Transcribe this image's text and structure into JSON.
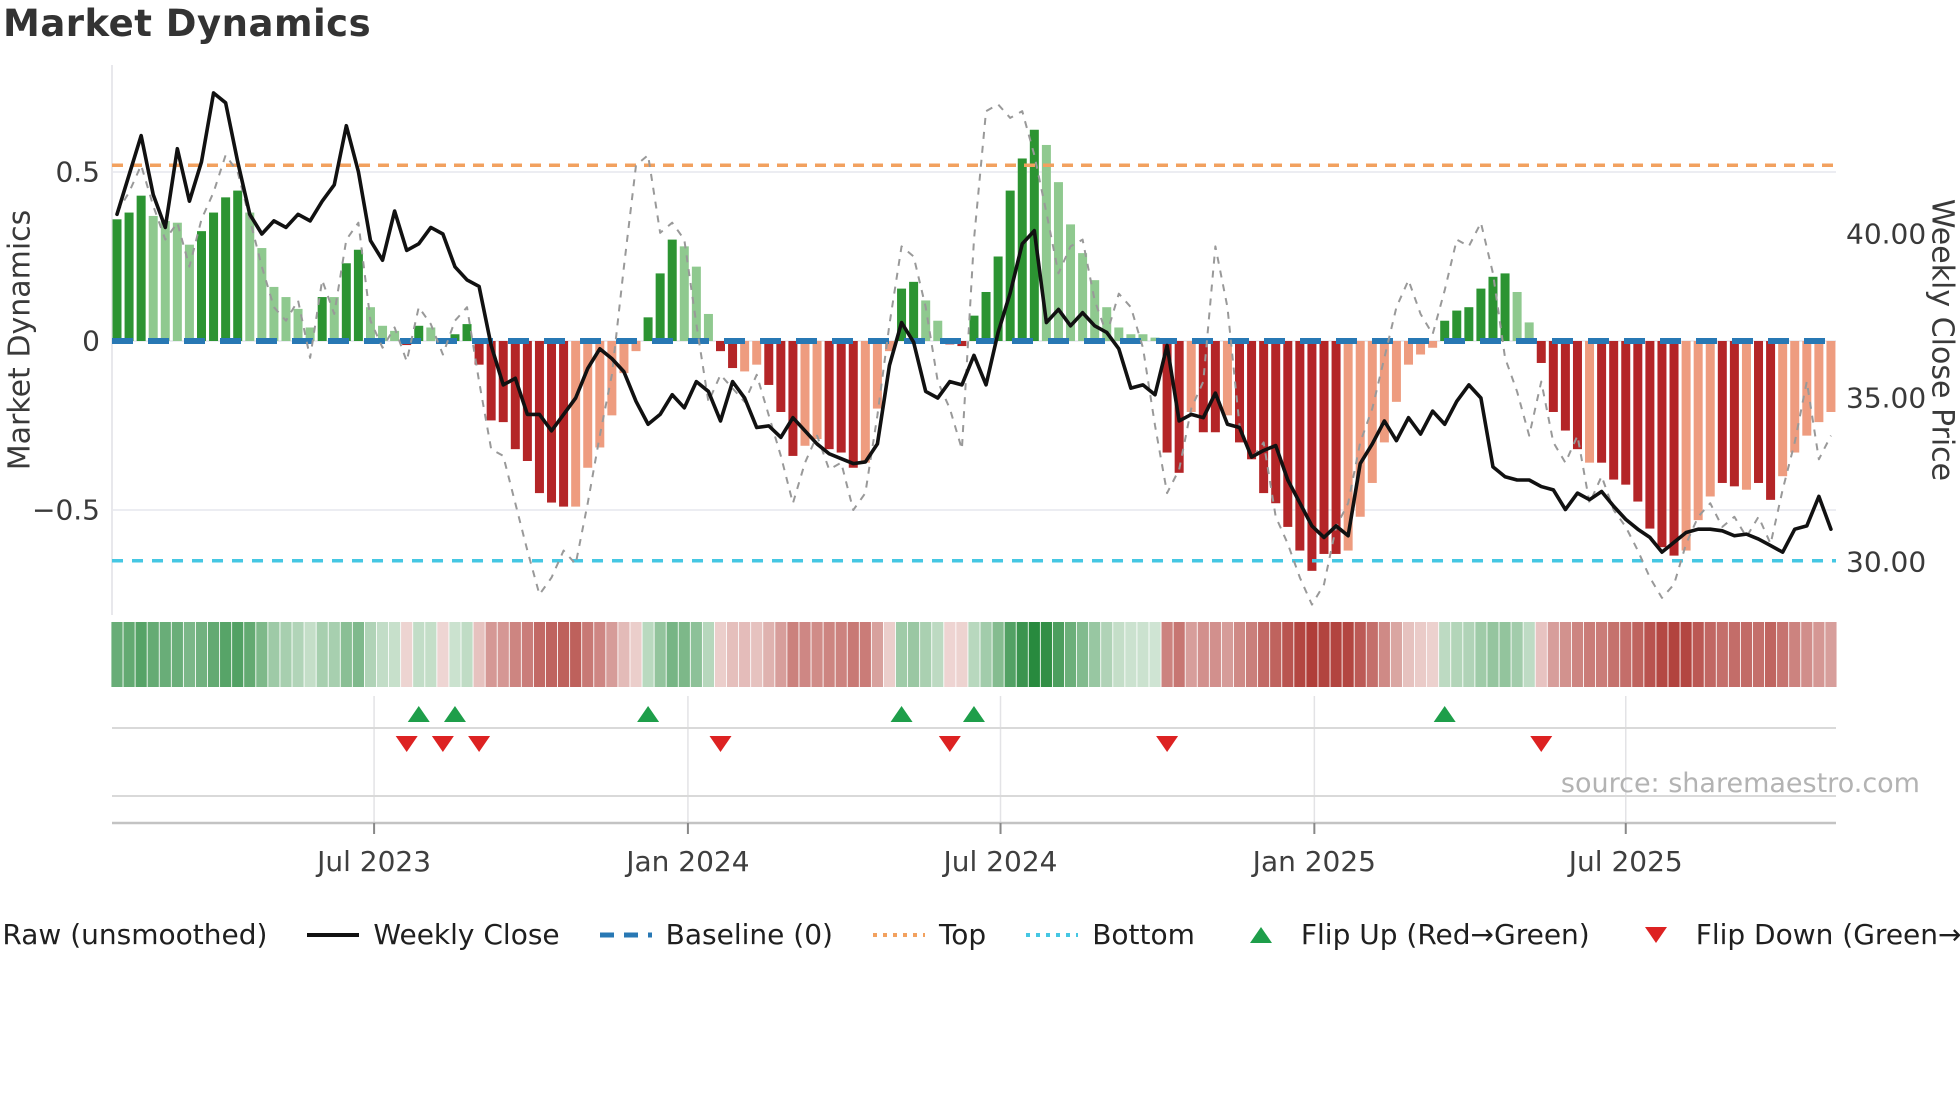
{
  "title": "Market Dynamics",
  "source_note": "source: sharemaestro.com",
  "axes": {
    "left": {
      "label": "Market Dynamics",
      "ticks": [
        {
          "value": 0.5,
          "label": "0.5"
        },
        {
          "value": 0,
          "label": "0"
        },
        {
          "value": -0.5,
          "label": "−0.5"
        }
      ]
    },
    "right": {
      "label": "Weekly Close Price",
      "ticks": [
        {
          "value": 40,
          "label": "40.00"
        },
        {
          "value": 35,
          "label": "35.00"
        },
        {
          "value": 30,
          "label": "30.00"
        }
      ]
    },
    "x": {
      "ticks": [
        {
          "week_index": 21.3,
          "label": "Jul 2023"
        },
        {
          "week_index": 47.3,
          "label": "Jan 2024"
        },
        {
          "week_index": 73.2,
          "label": "Jul 2024"
        },
        {
          "week_index": 99.2,
          "label": "Jan 2025"
        },
        {
          "week_index": 125.0,
          "label": "Jul 2025"
        }
      ]
    }
  },
  "thresholds": {
    "baseline": {
      "value": 0,
      "label": "Baseline (0)",
      "color": "#2878b4"
    },
    "top": {
      "value": 0.52,
      "label": "Top",
      "color": "#f2a15f"
    },
    "bottom": {
      "value": -0.65,
      "label": "Bottom",
      "color": "#45c7e3"
    }
  },
  "colors": {
    "bar_pos_strong": "#2c9432",
    "bar_pos_light": "#8fc98f",
    "bar_neg_strong": "#b42527",
    "bar_neg_light": "#ee9c7f",
    "close_line": "#111111",
    "raw_line": "#999999",
    "flip_up": "#1e9e4a",
    "flip_down": "#dd2222",
    "grid": "#ecedf2",
    "axis_line": "#c3c3c3",
    "marker_grid": "#e3e3e6",
    "heat_pos": "#288a3e",
    "heat_neg": "#b03e39"
  },
  "legend": [
    {
      "label": "Raw (unsmoothed)",
      "type": "dash",
      "color": "#999999"
    },
    {
      "label": "Weekly Close",
      "type": "solid",
      "color": "#111111"
    },
    {
      "label": "Baseline (0)",
      "type": "longdash",
      "color": "#2878b4"
    },
    {
      "label": "Top",
      "type": "dot",
      "color": "#f2a15f"
    },
    {
      "label": "Bottom",
      "type": "dot",
      "color": "#45c7e3"
    },
    {
      "label": "Flip Up (Red→Green)",
      "type": "tri-up",
      "color": "#1e9e4a"
    },
    {
      "label": "Flip Down (Green→Red)",
      "type": "tri-down",
      "color": "#dd2222"
    }
  ],
  "chart_data": {
    "type": [
      "bar",
      "line",
      "heatmap"
    ],
    "x_unit": "week",
    "n_weeks": 143,
    "ylim_oscillator": [
      -0.81,
      0.82
    ],
    "ylim_price": [
      28.4,
      45.2
    ],
    "grid": "horizontal-light",
    "legend_position": "bottom-center",
    "oscillator_values": [
      0.36,
      0.38,
      0.43,
      0.37,
      0.355,
      0.35,
      0.285,
      0.325,
      0.38,
      0.425,
      0.445,
      0.38,
      0.275,
      0.16,
      0.13,
      0.095,
      0.04,
      0.13,
      0.13,
      0.23,
      0.27,
      0.1,
      0.045,
      0.03,
      -0.012,
      0.045,
      0.04,
      -0.008,
      0.02,
      0.05,
      -0.07,
      -0.235,
      -0.24,
      -0.32,
      -0.355,
      -0.45,
      -0.478,
      -0.49,
      -0.49,
      -0.375,
      -0.315,
      -0.22,
      -0.095,
      -0.03,
      0.07,
      0.2,
      0.3,
      0.28,
      0.22,
      0.08,
      -0.03,
      -0.08,
      -0.09,
      -0.07,
      -0.13,
      -0.21,
      -0.34,
      -0.31,
      -0.29,
      -0.32,
      -0.33,
      -0.375,
      -0.36,
      -0.2,
      -0.03,
      0.155,
      0.175,
      0.12,
      0.06,
      -0.01,
      -0.015,
      0.075,
      0.145,
      0.25,
      0.445,
      0.54,
      0.625,
      0.58,
      0.47,
      0.345,
      0.26,
      0.18,
      0.1,
      0.04,
      0.02,
      0.02,
      0.01,
      -0.33,
      -0.39,
      -0.21,
      -0.27,
      -0.27,
      -0.22,
      -0.3,
      -0.35,
      -0.45,
      -0.48,
      -0.55,
      -0.62,
      -0.68,
      -0.63,
      -0.63,
      -0.62,
      -0.52,
      -0.42,
      -0.3,
      -0.18,
      -0.07,
      -0.04,
      -0.02,
      0.06,
      0.09,
      0.1,
      0.155,
      0.19,
      0.2,
      0.145,
      0.055,
      -0.065,
      -0.21,
      -0.265,
      -0.32,
      -0.36,
      -0.36,
      -0.41,
      -0.425,
      -0.475,
      -0.555,
      -0.61,
      -0.635,
      -0.62,
      -0.53,
      -0.46,
      -0.42,
      -0.43,
      -0.44,
      -0.42,
      -0.47,
      -0.4,
      -0.33,
      -0.28,
      -0.24,
      -0.21
    ],
    "oscillator_tone": "dddllllddddlllllldlddlllddldddddddddddllllllllldddlllddllldddlldddllldd--fix--",
    "oscillator_tone_segments": [
      "dddlllldddd",
      "llllll",
      "dlddlll",
      "ddlddd",
      "dddddddd",
      "llllll",
      "ddd",
      "lll",
      "ddll",
      "ddd",
      "ll",
      "ddd",
      "lll",
      "dd",
      "ll",
      "dd",
      "dddddd",
      "llllllllll",
      "ddlddl",
      "ddddddddd",
      "llllllll",
      "dddddd",
      "ll",
      "dddd",
      "l",
      "ddddddd",
      "lll",
      "dd",
      "l",
      "dd",
      "lllll"
    ],
    "weekly_close": [
      40.6,
      41.8,
      43.0,
      41.2,
      40.2,
      42.6,
      41.0,
      42.2,
      44.3,
      44.0,
      42.2,
      40.6,
      40.0,
      40.4,
      40.2,
      40.6,
      40.4,
      41.0,
      41.5,
      43.3,
      41.9,
      39.8,
      39.2,
      40.7,
      39.5,
      39.7,
      40.2,
      40.0,
      39.0,
      38.6,
      38.4,
      36.6,
      35.4,
      35.6,
      34.5,
      34.5,
      34.0,
      34.5,
      35.0,
      35.9,
      36.5,
      36.2,
      35.8,
      34.9,
      34.2,
      34.5,
      35.1,
      34.7,
      35.5,
      35.2,
      34.3,
      35.5,
      35.0,
      34.1,
      34.15,
      33.8,
      34.4,
      34.0,
      33.6,
      33.3,
      33.15,
      33.0,
      33.05,
      33.6,
      36.0,
      37.3,
      36.7,
      35.2,
      35.0,
      35.5,
      35.4,
      36.3,
      35.4,
      37.0,
      38.2,
      39.7,
      40.1,
      37.3,
      37.7,
      37.2,
      37.6,
      37.2,
      37.0,
      36.5,
      35.3,
      35.4,
      35.1,
      36.6,
      34.3,
      34.5,
      34.4,
      35.15,
      34.2,
      34.1,
      33.2,
      33.4,
      33.55,
      32.5,
      31.8,
      31.1,
      30.75,
      31.1,
      30.8,
      33.0,
      33.6,
      34.3,
      33.7,
      34.4,
      33.9,
      34.6,
      34.2,
      34.9,
      35.4,
      35.0,
      32.9,
      32.6,
      32.5,
      32.5,
      32.3,
      32.2,
      31.6,
      32.1,
      31.9,
      32.15,
      31.7,
      31.3,
      31.0,
      30.75,
      30.3,
      30.6,
      30.9,
      31.0,
      31.0,
      30.95,
      30.8,
      30.85,
      30.7,
      30.5,
      30.3,
      31.0,
      31.1,
      32.0,
      31.0
    ],
    "raw_unsmoothed": [
      0.38,
      0.44,
      0.52,
      0.4,
      0.3,
      0.35,
      0.22,
      0.36,
      0.44,
      0.55,
      0.5,
      0.36,
      0.22,
      0.1,
      0.06,
      0.12,
      -0.05,
      0.18,
      0.08,
      0.3,
      0.35,
      0.06,
      -0.02,
      0.04,
      -0.06,
      0.1,
      0.05,
      -0.04,
      0.06,
      0.1,
      -0.12,
      -0.32,
      -0.34,
      -0.48,
      -0.62,
      -0.75,
      -0.7,
      -0.62,
      -0.66,
      -0.48,
      -0.28,
      -0.1,
      0.22,
      0.52,
      0.55,
      0.32,
      0.35,
      0.3,
      0.05,
      -0.18,
      -0.1,
      -0.14,
      -0.18,
      -0.1,
      -0.22,
      -0.34,
      -0.48,
      -0.36,
      -0.28,
      -0.38,
      -0.36,
      -0.5,
      -0.45,
      -0.22,
      0.05,
      0.28,
      0.25,
      0.1,
      -0.12,
      -0.2,
      -0.32,
      0.3,
      0.68,
      0.7,
      0.66,
      0.68,
      0.55,
      0.38,
      0.2,
      0.28,
      0.3,
      0.12,
      0.02,
      0.14,
      0.1,
      -0.02,
      -0.25,
      -0.45,
      -0.38,
      -0.2,
      -0.12,
      0.28,
      0.1,
      -0.25,
      -0.35,
      -0.3,
      -0.52,
      -0.6,
      -0.7,
      -0.78,
      -0.72,
      -0.55,
      -0.48,
      -0.3,
      -0.2,
      -0.05,
      0.1,
      0.18,
      0.08,
      0.02,
      0.15,
      0.3,
      0.28,
      0.35,
      0.2,
      -0.05,
      -0.15,
      -0.28,
      -0.12,
      -0.3,
      -0.36,
      -0.28,
      -0.48,
      -0.4,
      -0.5,
      -0.55,
      -0.62,
      -0.7,
      -0.76,
      -0.72,
      -0.6,
      -0.52,
      -0.48,
      -0.55,
      -0.52,
      -0.58,
      -0.52,
      -0.6,
      -0.44,
      -0.3,
      -0.12,
      -0.35,
      -0.28
    ],
    "flip_up_weeks": [
      25,
      28,
      44,
      65,
      71,
      110
    ],
    "flip_down_weeks": [
      24,
      27,
      30,
      50,
      69,
      87,
      118
    ]
  }
}
